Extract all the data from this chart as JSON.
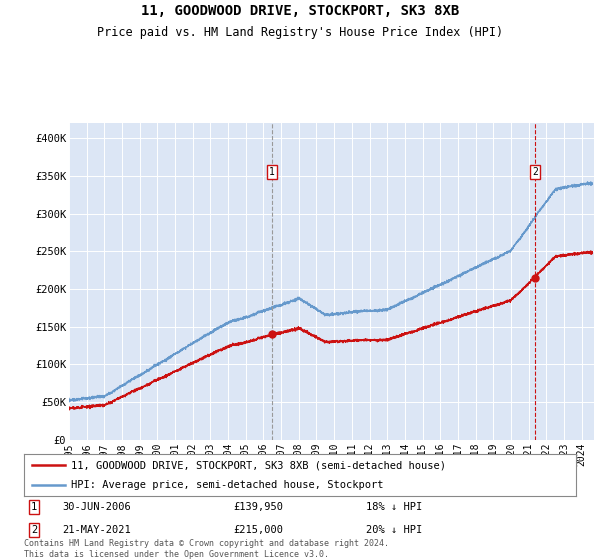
{
  "title": "11, GOODWOOD DRIVE, STOCKPORT, SK3 8XB",
  "subtitle": "Price paid vs. HM Land Registry's House Price Index (HPI)",
  "background_color": "#dce6f5",
  "plot_bg_color": "#dce6f5",
  "yticks": [
    0,
    50000,
    100000,
    150000,
    200000,
    250000,
    300000,
    350000,
    400000
  ],
  "ytick_labels": [
    "£0",
    "£50K",
    "£100K",
    "£150K",
    "£200K",
    "£250K",
    "£300K",
    "£350K",
    "£400K"
  ],
  "hpi_color": "#6699cc",
  "price_color": "#cc1111",
  "sale1_x": 2006.5,
  "sale1_price": 139950,
  "sale2_x": 2021.38,
  "sale2_price": 215000,
  "legend_label_price": "11, GOODWOOD DRIVE, STOCKPORT, SK3 8XB (semi-detached house)",
  "legend_label_hpi": "HPI: Average price, semi-detached house, Stockport",
  "footer": "Contains HM Land Registry data © Crown copyright and database right 2024.\nThis data is licensed under the Open Government Licence v3.0."
}
